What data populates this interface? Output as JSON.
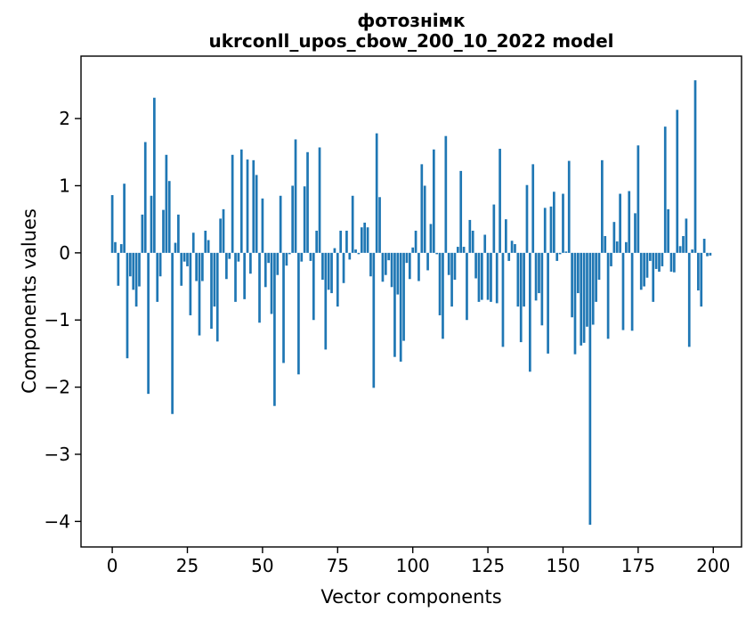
{
  "chart_data": {
    "type": "bar",
    "title": "фотознімк",
    "subtitle": "ukrconll_upos_cbow_200_10_2022 model",
    "xlabel": "Vector components",
    "ylabel": "Components values",
    "bar_color": "#1f77b4",
    "background_color": "#ffffff",
    "spine_color": "#000000",
    "grid": false,
    "legend": "none",
    "n_components": 200,
    "x_ticks": [
      0,
      25,
      50,
      75,
      100,
      125,
      150,
      175,
      200
    ],
    "y_ticks": [
      2,
      1,
      0,
      -1,
      -2,
      -3,
      -4
    ],
    "xlim": [
      -10.4,
      209.4
    ],
    "ylim": [
      -4.38,
      2.93
    ],
    "bar_width_units": 0.8,
    "values": [
      0.86,
      0.16,
      -0.49,
      0.13,
      1.03,
      -1.57,
      -0.35,
      -0.55,
      -0.8,
      -0.5,
      0.57,
      1.65,
      -2.1,
      0.85,
      2.31,
      -0.73,
      -0.35,
      0.64,
      1.46,
      1.07,
      -2.4,
      0.15,
      0.57,
      -0.49,
      -0.13,
      -0.2,
      -0.93,
      0.3,
      -0.42,
      -1.23,
      -0.42,
      0.33,
      0.19,
      -1.13,
      -0.8,
      -1.32,
      0.51,
      0.65,
      -0.39,
      -0.09,
      1.46,
      -0.73,
      -0.13,
      1.54,
      -0.69,
      1.39,
      -0.31,
      1.38,
      1.16,
      -1.04,
      0.81,
      -0.51,
      -0.15,
      -0.91,
      -2.28,
      -0.33,
      0.85,
      -1.64,
      -0.19,
      -0.02,
      1.0,
      1.69,
      -1.81,
      -0.13,
      0.99,
      1.5,
      -0.12,
      -1.0,
      0.33,
      1.57,
      -0.4,
      -1.44,
      -0.55,
      -0.6,
      0.07,
      -0.8,
      0.33,
      -0.45,
      0.33,
      -0.1,
      0.85,
      0.05,
      -0.02,
      0.38,
      0.45,
      0.38,
      -0.35,
      -2.01,
      1.78,
      0.83,
      -0.43,
      -0.33,
      -0.11,
      -0.51,
      -1.55,
      -0.62,
      -1.62,
      -1.31,
      -0.15,
      -0.39,
      0.08,
      0.33,
      -0.42,
      1.32,
      1.0,
      -0.26,
      0.43,
      1.54,
      -0.02,
      -0.93,
      -1.28,
      1.74,
      -0.33,
      -0.8,
      -0.4,
      0.09,
      1.22,
      0.09,
      -1.0,
      0.49,
      0.33,
      -0.38,
      -0.73,
      -0.7,
      0.27,
      -0.7,
      -0.73,
      0.72,
      -0.75,
      1.55,
      -1.4,
      0.5,
      -0.12,
      0.18,
      0.13,
      -0.8,
      -1.33,
      -0.8,
      1.01,
      -1.77,
      1.32,
      -0.71,
      -0.6,
      -1.08,
      0.67,
      -1.5,
      0.69,
      0.91,
      -0.12,
      -0.02,
      0.88,
      0.02,
      1.37,
      -0.96,
      -1.51,
      -0.6,
      -1.38,
      -1.34,
      -1.1,
      -4.05,
      -1.07,
      -0.73,
      -0.4,
      1.38,
      0.25,
      -1.28,
      -0.2,
      0.46,
      0.17,
      0.88,
      -1.15,
      0.16,
      0.92,
      -1.16,
      0.59,
      1.6,
      -0.55,
      -0.5,
      -0.37,
      -0.12,
      -0.73,
      -0.24,
      -0.28,
      -0.2,
      1.88,
      0.65,
      -0.28,
      -0.29,
      2.13,
      0.1,
      0.25,
      0.51,
      -1.4,
      0.05,
      2.57,
      -0.56,
      -0.8,
      0.21,
      -0.05,
      -0.04
    ]
  }
}
